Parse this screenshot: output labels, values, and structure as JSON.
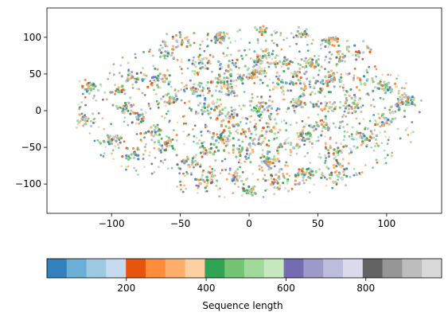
{
  "chart_data": {
    "type": "scatter",
    "title": "",
    "xlabel": "",
    "ylabel": "",
    "xlim": [
      -147,
      140
    ],
    "ylim": [
      -140,
      140
    ],
    "xticks": [
      -100,
      -50,
      0,
      50,
      100
    ],
    "yticks": [
      -100,
      -50,
      0,
      50,
      100
    ],
    "grid": false,
    "point_color_encoding": "Sequence length",
    "cluster_centers_xy": [
      [
        -115,
        35
      ],
      [
        -95,
        28
      ],
      [
        -85,
        45
      ],
      [
        -65,
        42
      ],
      [
        -90,
        5
      ],
      [
        -80,
        -10
      ],
      [
        -70,
        -30
      ],
      [
        -55,
        15
      ],
      [
        -40,
        28
      ],
      [
        -25,
        38
      ],
      [
        -15,
        28
      ],
      [
        -5,
        45
      ],
      [
        5,
        50
      ],
      [
        25,
        32
      ],
      [
        35,
        45
      ],
      [
        50,
        35
      ],
      [
        60,
        45
      ],
      [
        80,
        40
      ],
      [
        100,
        30
      ],
      [
        115,
        15
      ],
      [
        -35,
        65
      ],
      [
        -15,
        60
      ],
      [
        10,
        70
      ],
      [
        25,
        65
      ],
      [
        45,
        65
      ],
      [
        65,
        75
      ],
      [
        -100,
        -40
      ],
      [
        -85,
        -60
      ],
      [
        -60,
        -45
      ],
      [
        -45,
        -70
      ],
      [
        -30,
        -55
      ],
      [
        -20,
        -40
      ],
      [
        -10,
        -30
      ],
      [
        -5,
        -55
      ],
      [
        5,
        -45
      ],
      [
        15,
        -25
      ],
      [
        25,
        -50
      ],
      [
        40,
        -35
      ],
      [
        55,
        -20
      ],
      [
        65,
        -55
      ],
      [
        85,
        -40
      ],
      [
        100,
        -15
      ],
      [
        15,
        -70
      ],
      [
        -10,
        -90
      ],
      [
        20,
        -95
      ],
      [
        40,
        -90
      ],
      [
        65,
        -85
      ],
      [
        -30,
        -95
      ],
      [
        -50,
        95
      ],
      [
        -20,
        100
      ],
      [
        10,
        110
      ],
      [
        40,
        105
      ],
      [
        60,
        95
      ],
      [
        110,
        5
      ],
      [
        -120,
        -15
      ],
      [
        -60,
        80
      ],
      [
        80,
        85
      ],
      [
        0,
        -110
      ],
      [
        -15,
        -10
      ],
      [
        10,
        5
      ],
      [
        35,
        10
      ],
      [
        -30,
        5
      ],
      [
        55,
        5
      ],
      [
        75,
        10
      ]
    ],
    "colorbar": {
      "label": "Sequence length",
      "range": [
        1,
        990
      ],
      "ticks": [
        200,
        400,
        600,
        800
      ],
      "colormap": "tab20c",
      "colors": [
        "#3182bd",
        "#6baed6",
        "#9ecae1",
        "#c6dbef",
        "#e6550d",
        "#fd8d3c",
        "#fdae6b",
        "#fdd0a2",
        "#31a354",
        "#74c476",
        "#a1d99b",
        "#c7e9c0",
        "#756bb1",
        "#9e9ac8",
        "#bcbddc",
        "#dadaeb",
        "#636363",
        "#969696",
        "#bdbdbd",
        "#d9d9d9"
      ]
    }
  }
}
